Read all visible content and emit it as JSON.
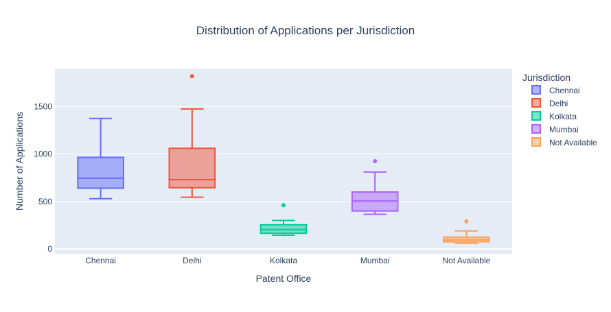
{
  "chart_data": {
    "type": "box",
    "title": "Distribution of Applications per Jurisdiction",
    "xlabel": "Patent Office",
    "ylabel": "Number of Applications",
    "ylim": [
      -50,
      1900
    ],
    "yticks": [
      0,
      500,
      1000,
      1500
    ],
    "grid": true,
    "legend": {
      "title": "Jurisdiction",
      "placement": "right"
    },
    "categories": [
      "Chennai",
      "Delhi",
      "Kolkata",
      "Mumbai",
      "Not Available"
    ],
    "series": [
      {
        "name": "Chennai",
        "color": "#636efa",
        "min": 530,
        "q1": 640,
        "median": 745,
        "q3": 965,
        "max": 1375,
        "outliers": []
      },
      {
        "name": "Delhi",
        "color": "#ef553b",
        "min": 545,
        "q1": 645,
        "median": 730,
        "q3": 1060,
        "max": 1475,
        "outliers": [
          1820
        ]
      },
      {
        "name": "Kolkata",
        "color": "#00cc96",
        "min": 145,
        "q1": 165,
        "median": 205,
        "q3": 255,
        "max": 300,
        "outliers": [
          460
        ]
      },
      {
        "name": "Mumbai",
        "color": "#ab63fa",
        "min": 365,
        "q1": 400,
        "median": 505,
        "q3": 600,
        "max": 810,
        "outliers": [
          925
        ]
      },
      {
        "name": "Not Available",
        "color": "#ffa15a",
        "min": 60,
        "q1": 75,
        "median": 95,
        "q3": 125,
        "max": 190,
        "outliers": [
          290
        ]
      }
    ]
  }
}
